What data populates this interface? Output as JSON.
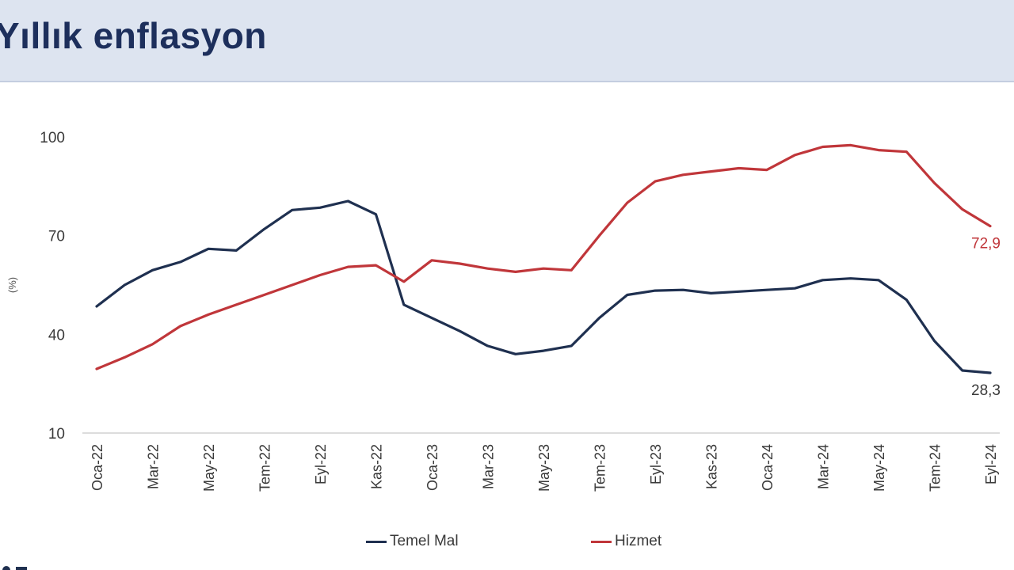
{
  "header": {
    "title": "Yıllık enflasyon"
  },
  "colors": {
    "temel_mal": "#1f3050",
    "hizmet": "#c0363a",
    "header_bg": "#dde4f0"
  },
  "chart_data": {
    "type": "line",
    "title": "Yıllık enflasyon",
    "ylabel": "(%)",
    "xlabel": "",
    "ylim": [
      10,
      100
    ],
    "yticks": [
      "10",
      "40",
      "70",
      "100"
    ],
    "grid": false,
    "legend_position": "bottom",
    "x": [
      "Oca-22",
      "Şub-22",
      "Mar-22",
      "Nis-22",
      "May-22",
      "Haz-22",
      "Tem-22",
      "Ağu-22",
      "Eyl-22",
      "Eki-22",
      "Kas-22",
      "Ara-22",
      "Oca-23",
      "Şub-23",
      "Mar-23",
      "Nis-23",
      "May-23",
      "Haz-23",
      "Tem-23",
      "Ağu-23",
      "Eyl-23",
      "Eki-23",
      "Kas-23",
      "Ara-23",
      "Oca-24",
      "Şub-24",
      "Mar-24",
      "Nis-24",
      "May-24",
      "Haz-24",
      "Tem-24",
      "Ağu-24",
      "Eyl-24"
    ],
    "tick_labels": [
      "Oca-22",
      "Mar-22",
      "May-22",
      "Tem-22",
      "Eyl-22",
      "Kas-22",
      "Oca-23",
      "Mar-23",
      "May-23",
      "Tem-23",
      "Eyl-23",
      "Kas-23",
      "Oca-24",
      "Mar-24",
      "May-24",
      "Tem-24",
      "Eyl-24"
    ],
    "series": [
      {
        "name": "Temel Mal",
        "values": [
          48.5,
          55.0,
          59.5,
          62.0,
          66.0,
          65.5,
          72.0,
          77.8,
          78.5,
          80.5,
          76.5,
          49.0,
          45.0,
          41.0,
          36.5,
          34.0,
          35.0,
          36.5,
          45.0,
          52.0,
          53.3,
          53.5,
          52.5,
          53.0,
          53.5,
          54.0,
          56.5,
          57.0,
          56.5,
          50.5,
          38.0,
          29.0,
          28.3
        ],
        "end_label": "28,3"
      },
      {
        "name": "Hizmet",
        "values": [
          29.5,
          33.0,
          37.0,
          42.5,
          46.0,
          49.0,
          52.0,
          55.0,
          58.0,
          60.5,
          61.0,
          56.0,
          62.5,
          61.5,
          60.0,
          59.0,
          60.0,
          59.5,
          70.0,
          80.0,
          86.5,
          88.5,
          89.5,
          90.5,
          90.0,
          94.5,
          97.0,
          97.5,
          96.0,
          95.5,
          86.0,
          78.0,
          72.9
        ],
        "end_label": "72,9"
      }
    ]
  },
  "legend": {
    "items": [
      "Temel Mal",
      "Hizmet"
    ]
  }
}
